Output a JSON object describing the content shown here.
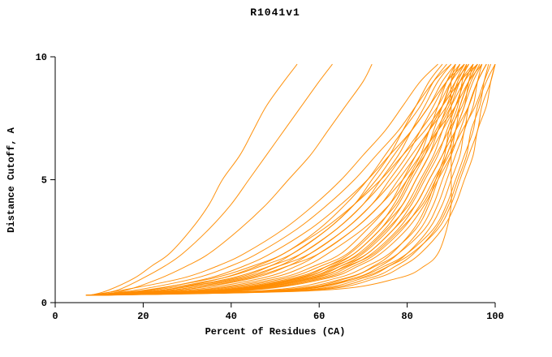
{
  "chart_data": {
    "type": "line",
    "title": "R1041v1",
    "xlabel": "Percent of Residues (CA)",
    "ylabel": "Distance Cutoff, A",
    "xlim": [
      0,
      100
    ],
    "ylim": [
      0,
      10
    ],
    "xticks": [
      0,
      20,
      40,
      60,
      80,
      100
    ],
    "yticks": [
      0,
      5,
      10
    ],
    "grid": false,
    "legend": "none",
    "line_color": "#ff8c00",
    "axis_color": "#000000",
    "y_levels": [
      0.3,
      0.5,
      1,
      1.5,
      2,
      3,
      4,
      5,
      6,
      7,
      8,
      9,
      9.7
    ],
    "series": [
      [
        8,
        55,
        70,
        76,
        80,
        85,
        88,
        90,
        92,
        93,
        95,
        96,
        97
      ],
      [
        9.5,
        56.5,
        71.5,
        77.5,
        81.5,
        86.5,
        89.5,
        91.5,
        93.5,
        94.5,
        96.5,
        97.5,
        98.5
      ],
      [
        11,
        58,
        73,
        79,
        83,
        88,
        91,
        93,
        95,
        96,
        98,
        99,
        100
      ],
      [
        7,
        53,
        68,
        74,
        78,
        83,
        86,
        88,
        90,
        91,
        93,
        94,
        95
      ],
      [
        8,
        50,
        66,
        73,
        78,
        84,
        87,
        89,
        91,
        93,
        94,
        96,
        98
      ],
      [
        9,
        52,
        68,
        75,
        80,
        86,
        89,
        91,
        93,
        95,
        96,
        98,
        100
      ],
      [
        7.5,
        48,
        64,
        71,
        76,
        82,
        85,
        87,
        89,
        91,
        92,
        94,
        96
      ],
      [
        10,
        53,
        69,
        76,
        81,
        87,
        90,
        92,
        94,
        96,
        97,
        99,
        100
      ],
      [
        9,
        60,
        78,
        84,
        87,
        89,
        90,
        90,
        90,
        90,
        90,
        90,
        91
      ],
      [
        7,
        51.5,
        66.5,
        72.5,
        76.5,
        81.5,
        84.5,
        86.5,
        88.5,
        89.5,
        91.5,
        92.5,
        93.5
      ],
      [
        8,
        40,
        58,
        65,
        70,
        76,
        80,
        83,
        86,
        88,
        90,
        92,
        94
      ],
      [
        8.5,
        41,
        59,
        66,
        71,
        77,
        81,
        84,
        87,
        89,
        91,
        93,
        95
      ],
      [
        9,
        42,
        60,
        67,
        72,
        78,
        82,
        85,
        88,
        90,
        92,
        94,
        96
      ],
      [
        9.5,
        43,
        61,
        68,
        73,
        79,
        83,
        86,
        89,
        91,
        93,
        95,
        97
      ],
      [
        7.5,
        39,
        57,
        64,
        69,
        75,
        79,
        82,
        85,
        87,
        89,
        91,
        93
      ],
      [
        7,
        38,
        56,
        63,
        68,
        74,
        78,
        81,
        84,
        86,
        88,
        90,
        92
      ],
      [
        7,
        37,
        55,
        62,
        67,
        73,
        77,
        80,
        83,
        85,
        87,
        89,
        91
      ],
      [
        10,
        44,
        62,
        69,
        74,
        80,
        84,
        87,
        90,
        92,
        94,
        96,
        98
      ],
      [
        8,
        36,
        54,
        62,
        68,
        74,
        79,
        82,
        85,
        88,
        91,
        93,
        95
      ],
      [
        8.5,
        37.5,
        55.5,
        63.5,
        69.5,
        75.5,
        80.5,
        83.5,
        86.5,
        89.5,
        92.5,
        94.5,
        96.5
      ],
      [
        9,
        39,
        57,
        65,
        71,
        77,
        82,
        85,
        88,
        91,
        94,
        96,
        98
      ],
      [
        7.5,
        34.5,
        52.5,
        60.5,
        66.5,
        72.5,
        77.5,
        80.5,
        83.5,
        86.5,
        89.5,
        91.5,
        93.5
      ],
      [
        7,
        33,
        51,
        59,
        65,
        71,
        76,
        79,
        82,
        85,
        88,
        90,
        92
      ],
      [
        9.5,
        40.5,
        58.5,
        66.5,
        72.5,
        78.5,
        83.5,
        86.5,
        89.5,
        92.5,
        95.5,
        97.5,
        99
      ],
      [
        8,
        28,
        45,
        53,
        58,
        66,
        72,
        76,
        80,
        83,
        86,
        89,
        92
      ],
      [
        8.5,
        30,
        47,
        55,
        60,
        68,
        74,
        78,
        82,
        85,
        88,
        91,
        94
      ],
      [
        9,
        32,
        49,
        57,
        62,
        70,
        76,
        80,
        84,
        87,
        90,
        93,
        96
      ],
      [
        7.5,
        26,
        43,
        51,
        56,
        64,
        70,
        74,
        78,
        81,
        84,
        87,
        90
      ],
      [
        7,
        24,
        41,
        49,
        54,
        62,
        68,
        72,
        76,
        79,
        82,
        85,
        88
      ],
      [
        8,
        24,
        40,
        49,
        56,
        64,
        70,
        75,
        79,
        83,
        87,
        90,
        93
      ],
      [
        8.5,
        26,
        42,
        51,
        58,
        66,
        72,
        77,
        81,
        85,
        89,
        92,
        95
      ],
      [
        9,
        28,
        44,
        53,
        60,
        68,
        74,
        79,
        83,
        87,
        91,
        94,
        97
      ],
      [
        7.5,
        22,
        38,
        47,
        54,
        62,
        68,
        73,
        77,
        81,
        85,
        88,
        91
      ],
      [
        7,
        20,
        36,
        45,
        52,
        60,
        66,
        71,
        75,
        79,
        83,
        86,
        89
      ],
      [
        8,
        18,
        32,
        40,
        46,
        55,
        62,
        68,
        73,
        78,
        82,
        86,
        90
      ],
      [
        8.5,
        21,
        35,
        43,
        49,
        58,
        65,
        71,
        76,
        81,
        85,
        89,
        93
      ],
      [
        9,
        24,
        38,
        46,
        52,
        61,
        68,
        74,
        79,
        84,
        88,
        92,
        96
      ],
      [
        7.5,
        15,
        29,
        37,
        43,
        52,
        59,
        65,
        70,
        75,
        79,
        83,
        87
      ],
      [
        8,
        12,
        18,
        22,
        26,
        31,
        35,
        38,
        42,
        45,
        48,
        52,
        55
      ],
      [
        8,
        14,
        20,
        25,
        29,
        35,
        40,
        44,
        48,
        52,
        56,
        60,
        63
      ],
      [
        9,
        16,
        24,
        30,
        35,
        42,
        48,
        53,
        58,
        62,
        66,
        70,
        72
      ]
    ]
  }
}
